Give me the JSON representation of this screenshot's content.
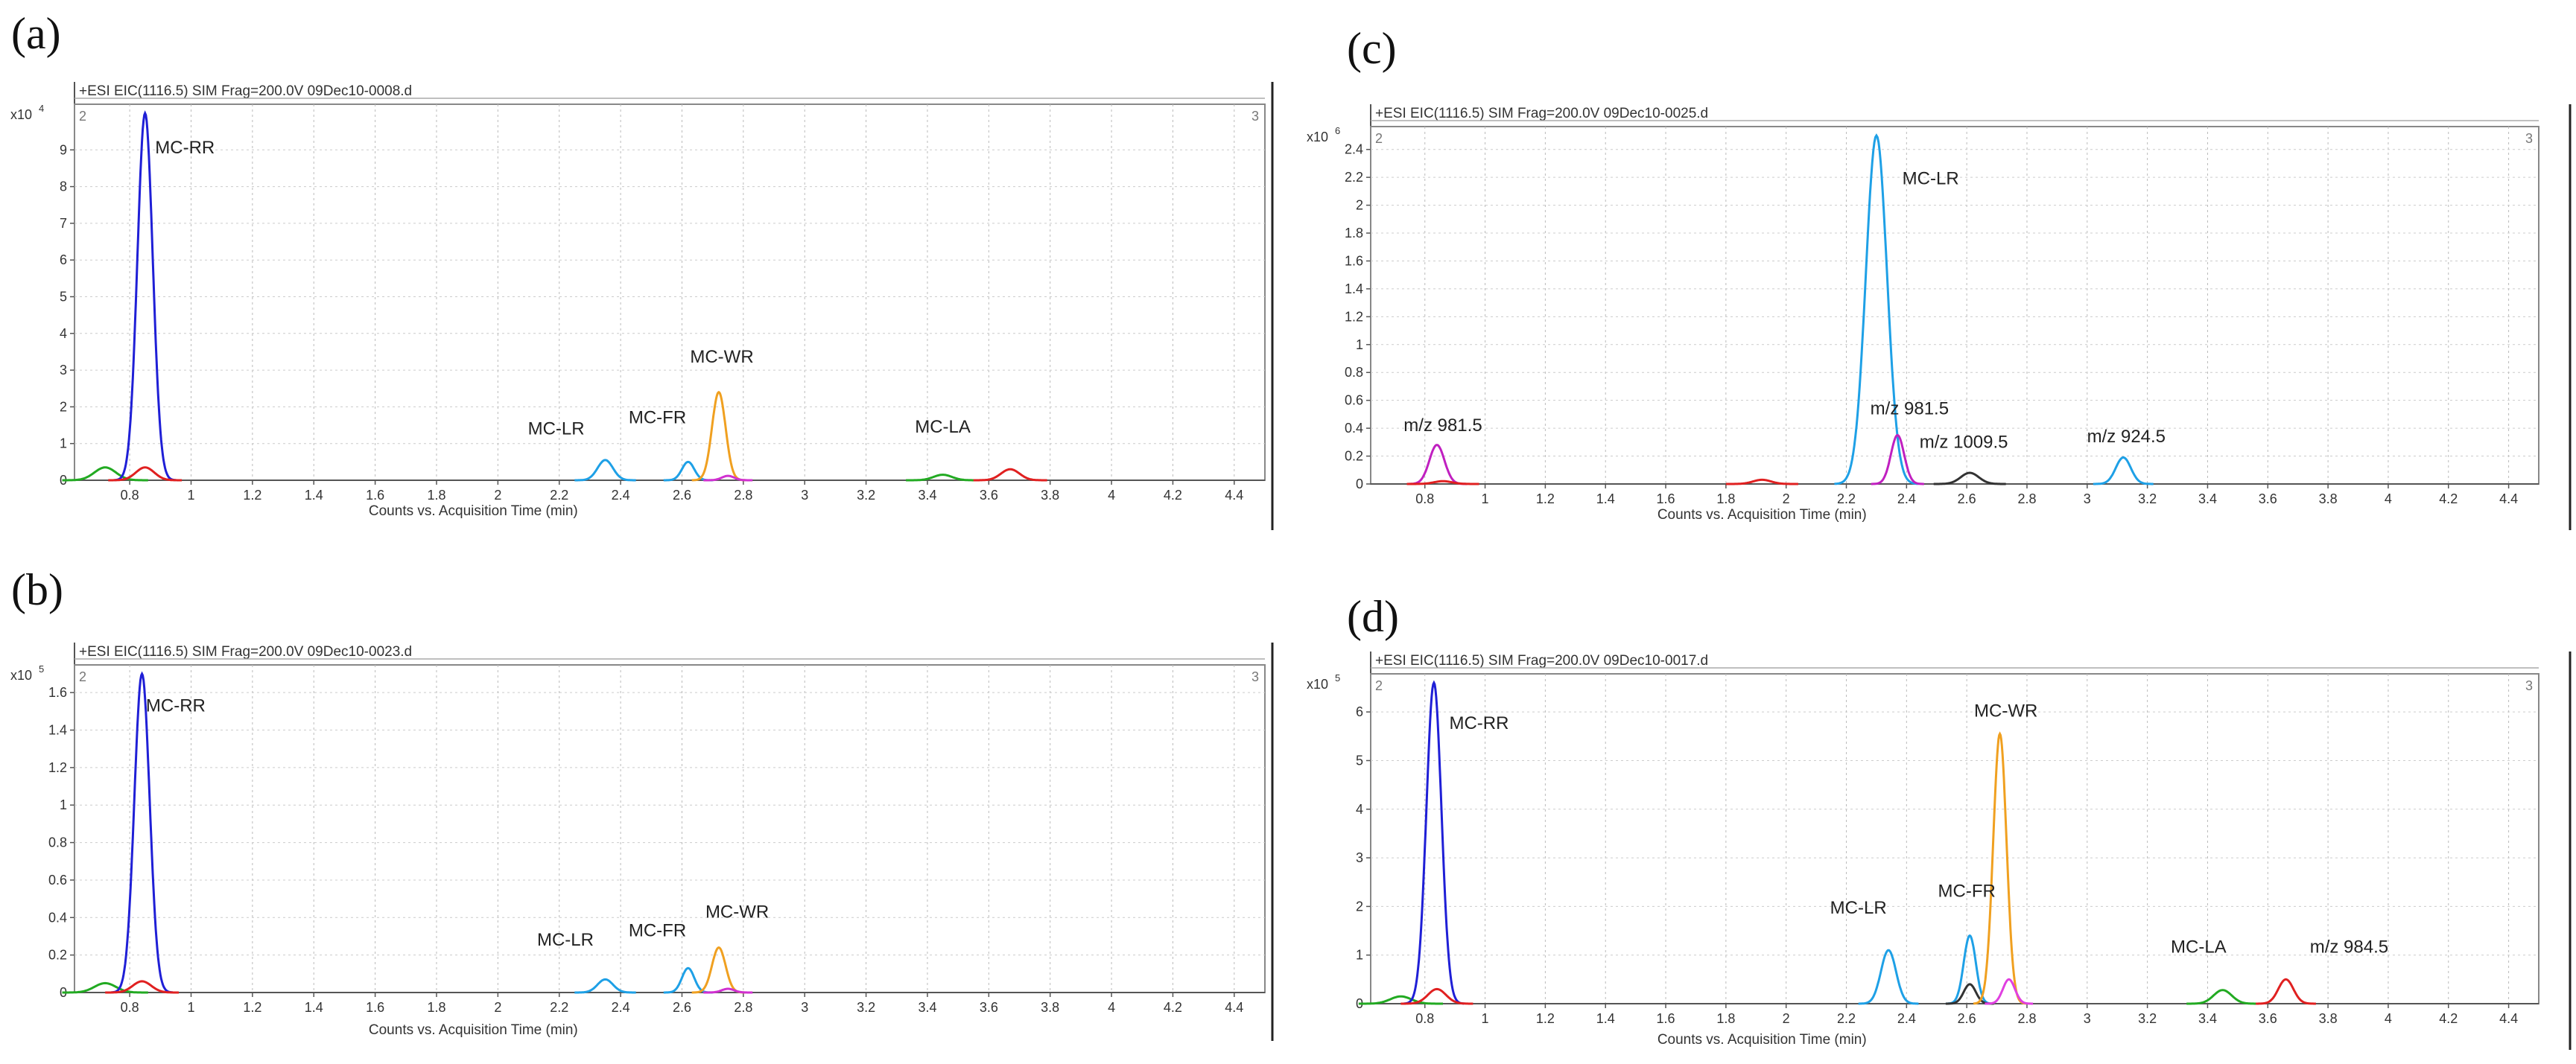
{
  "figure": {
    "xlabel": "Counts vs. Acquisition Time (min)",
    "panel_header": "+ESI EIC(1116.5) SIM Frag=200.0V"
  },
  "chart_data": [
    {
      "type": "line",
      "panel_label": "(a)",
      "header": "+ESI EIC(1116.5) SIM Frag=200.0V 09Dec10-0008.d",
      "scale_label": "x10 4",
      "corner_left": "2",
      "corner_right": "3",
      "xlabel": "Counts vs. Acquisition Time (min)",
      "xlim": [
        0.62,
        4.5
      ],
      "ylim": [
        0,
        10
      ],
      "xticks": [
        "0.8",
        "1",
        "1.2",
        "1.4",
        "1.6",
        "1.8",
        "2",
        "2.2",
        "2.4",
        "2.6",
        "2.8",
        "3",
        "3.2",
        "3.4",
        "3.6",
        "3.8",
        "4",
        "4.2",
        "4.4"
      ],
      "yticks": [
        "0",
        "1",
        "2",
        "3",
        "4",
        "5",
        "6",
        "7",
        "8",
        "9"
      ],
      "peaks": [
        {
          "center": 0.72,
          "height": 0.35,
          "width": 0.035,
          "color": "#22aa22"
        },
        {
          "center": 0.85,
          "height": 10.0,
          "width": 0.025,
          "color": "#1f1fd6"
        },
        {
          "center": 0.85,
          "height": 0.35,
          "width": 0.03,
          "color": "#e02020"
        },
        {
          "center": 2.35,
          "height": 0.55,
          "width": 0.025,
          "color": "#1ea0e6"
        },
        {
          "center": 2.62,
          "height": 0.5,
          "width": 0.02,
          "color": "#1ea0e6"
        },
        {
          "center": 2.72,
          "height": 2.4,
          "width": 0.022,
          "color": "#f0a020"
        },
        {
          "center": 2.75,
          "height": 0.12,
          "width": 0.02,
          "color": "#d030d0"
        },
        {
          "center": 3.45,
          "height": 0.15,
          "width": 0.03,
          "color": "#22aa22"
        },
        {
          "center": 3.67,
          "height": 0.3,
          "width": 0.03,
          "color": "#e02020"
        }
      ],
      "annotations": [
        {
          "text": "MC-RR",
          "x": 0.98,
          "y": 8.9
        },
        {
          "text": "MC-LR",
          "x": 2.19,
          "y": 1.25
        },
        {
          "text": "MC-FR",
          "x": 2.52,
          "y": 1.55
        },
        {
          "text": "MC-WR",
          "x": 2.73,
          "y": 3.2
        },
        {
          "text": "MC-LA",
          "x": 3.45,
          "y": 1.3
        }
      ]
    },
    {
      "type": "line",
      "panel_label": "(b)",
      "header": "+ESI EIC(1116.5) SIM Frag=200.0V 09Dec10-0023.d",
      "scale_label": "x10 5",
      "corner_left": "2",
      "corner_right": "3",
      "xlabel": "Counts vs. Acquisition Time (min)",
      "xlim": [
        0.62,
        4.5
      ],
      "ylim": [
        0,
        1.7
      ],
      "xticks": [
        "0.8",
        "1",
        "1.2",
        "1.4",
        "1.6",
        "1.8",
        "2",
        "2.2",
        "2.4",
        "2.6",
        "2.8",
        "3",
        "3.2",
        "3.4",
        "3.6",
        "3.8",
        "4",
        "4.2",
        "4.4"
      ],
      "yticks": [
        "0",
        "0.2",
        "0.4",
        "0.6",
        "0.8",
        "1",
        "1.2",
        "1.4",
        "1.6"
      ],
      "peaks": [
        {
          "center": 0.72,
          "height": 0.05,
          "width": 0.035,
          "color": "#22aa22"
        },
        {
          "center": 0.84,
          "height": 1.7,
          "width": 0.025,
          "color": "#1f1fd6"
        },
        {
          "center": 0.84,
          "height": 0.06,
          "width": 0.03,
          "color": "#e02020"
        },
        {
          "center": 2.35,
          "height": 0.07,
          "width": 0.025,
          "color": "#1ea0e6"
        },
        {
          "center": 2.62,
          "height": 0.13,
          "width": 0.02,
          "color": "#1ea0e6"
        },
        {
          "center": 2.72,
          "height": 0.24,
          "width": 0.022,
          "color": "#f0a020"
        },
        {
          "center": 2.75,
          "height": 0.02,
          "width": 0.02,
          "color": "#d030d0"
        }
      ],
      "annotations": [
        {
          "text": "MC-RR",
          "x": 0.95,
          "y": 1.5
        },
        {
          "text": "MC-LR",
          "x": 2.22,
          "y": 0.25
        },
        {
          "text": "MC-FR",
          "x": 2.52,
          "y": 0.3
        },
        {
          "text": "MC-WR",
          "x": 2.78,
          "y": 0.4
        }
      ]
    },
    {
      "type": "line",
      "panel_label": "(c)",
      "header": "+ESI EIC(1116.5) SIM Frag=200.0V 09Dec10-0025.d",
      "scale_label": "x10 6",
      "corner_left": "2",
      "corner_right": "3",
      "xlabel": "Counts vs. Acquisition Time (min)",
      "xlim": [
        0.62,
        4.5
      ],
      "ylim": [
        0,
        2.5
      ],
      "xticks": [
        "0.8",
        "1",
        "1.2",
        "1.4",
        "1.6",
        "1.8",
        "2",
        "2.2",
        "2.4",
        "2.6",
        "2.8",
        "3",
        "3.2",
        "3.4",
        "3.6",
        "3.8",
        "4",
        "4.2",
        "4.4"
      ],
      "yticks": [
        "0",
        "0.2",
        "0.4",
        "0.6",
        "0.8",
        "1",
        "1.2",
        "1.4",
        "1.6",
        "1.8",
        "2",
        "2.2",
        "2.4"
      ],
      "peaks": [
        {
          "center": 0.84,
          "height": 0.28,
          "width": 0.025,
          "color": "#c020c0"
        },
        {
          "center": 0.86,
          "height": 0.02,
          "width": 0.03,
          "color": "#e02020"
        },
        {
          "center": 1.92,
          "height": 0.03,
          "width": 0.03,
          "color": "#e02020"
        },
        {
          "center": 2.3,
          "height": 2.5,
          "width": 0.035,
          "color": "#1ea0e6"
        },
        {
          "center": 2.37,
          "height": 0.35,
          "width": 0.022,
          "color": "#c020c0"
        },
        {
          "center": 2.61,
          "height": 0.08,
          "width": 0.03,
          "color": "#333333"
        },
        {
          "center": 3.12,
          "height": 0.19,
          "width": 0.025,
          "color": "#1ea0e6"
        }
      ],
      "annotations": [
        {
          "text": "MC-LR",
          "x": 2.48,
          "y": 2.15
        },
        {
          "text": "m/z 981.5",
          "x": 0.86,
          "y": 0.38
        },
        {
          "text": "m/z 981.5",
          "x": 2.41,
          "y": 0.5
        },
        {
          "text": "m/z 1009.5",
          "x": 2.59,
          "y": 0.26
        },
        {
          "text": "m/z 924.5",
          "x": 3.13,
          "y": 0.3
        }
      ]
    },
    {
      "type": "line",
      "panel_label": "(d)",
      "header": "+ESI EIC(1116.5) SIM Frag=200.0V 09Dec10-0017.d",
      "scale_label": "x10 5",
      "corner_left": "2",
      "corner_right": "3",
      "xlabel": "Counts vs. Acquisition Time (min)",
      "xlim": [
        0.62,
        4.5
      ],
      "ylim": [
        0,
        6.6
      ],
      "xticks": [
        "0.8",
        "1",
        "1.2",
        "1.4",
        "1.6",
        "1.8",
        "2",
        "2.2",
        "2.4",
        "2.6",
        "2.8",
        "3",
        "3.2",
        "3.4",
        "3.6",
        "3.8",
        "4",
        "4.2",
        "4.4"
      ],
      "yticks": [
        "0",
        "1",
        "2",
        "3",
        "4",
        "5",
        "6"
      ],
      "peaks": [
        {
          "center": 0.72,
          "height": 0.15,
          "width": 0.035,
          "color": "#22aa22"
        },
        {
          "center": 0.83,
          "height": 6.6,
          "width": 0.025,
          "color": "#1f1fd6"
        },
        {
          "center": 0.84,
          "height": 0.3,
          "width": 0.03,
          "color": "#e02020"
        },
        {
          "center": 2.34,
          "height": 1.1,
          "width": 0.025,
          "color": "#1ea0e6"
        },
        {
          "center": 2.61,
          "height": 1.4,
          "width": 0.02,
          "color": "#1ea0e6"
        },
        {
          "center": 2.61,
          "height": 0.4,
          "width": 0.02,
          "color": "#333333"
        },
        {
          "center": 2.71,
          "height": 5.55,
          "width": 0.022,
          "color": "#f0a020"
        },
        {
          "center": 2.74,
          "height": 0.5,
          "width": 0.02,
          "color": "#e040e0"
        },
        {
          "center": 3.45,
          "height": 0.28,
          "width": 0.03,
          "color": "#22aa22"
        },
        {
          "center": 3.66,
          "height": 0.5,
          "width": 0.025,
          "color": "#e02020"
        }
      ],
      "annotations": [
        {
          "text": "MC-RR",
          "x": 0.98,
          "y": 5.65
        },
        {
          "text": "MC-LR",
          "x": 2.24,
          "y": 1.85
        },
        {
          "text": "MC-FR",
          "x": 2.6,
          "y": 2.2
        },
        {
          "text": "MC-WR",
          "x": 2.73,
          "y": 5.9
        },
        {
          "text": "MC-LA",
          "x": 3.37,
          "y": 1.05
        },
        {
          "text": "m/z 984.5",
          "x": 3.87,
          "y": 1.05
        }
      ]
    }
  ]
}
